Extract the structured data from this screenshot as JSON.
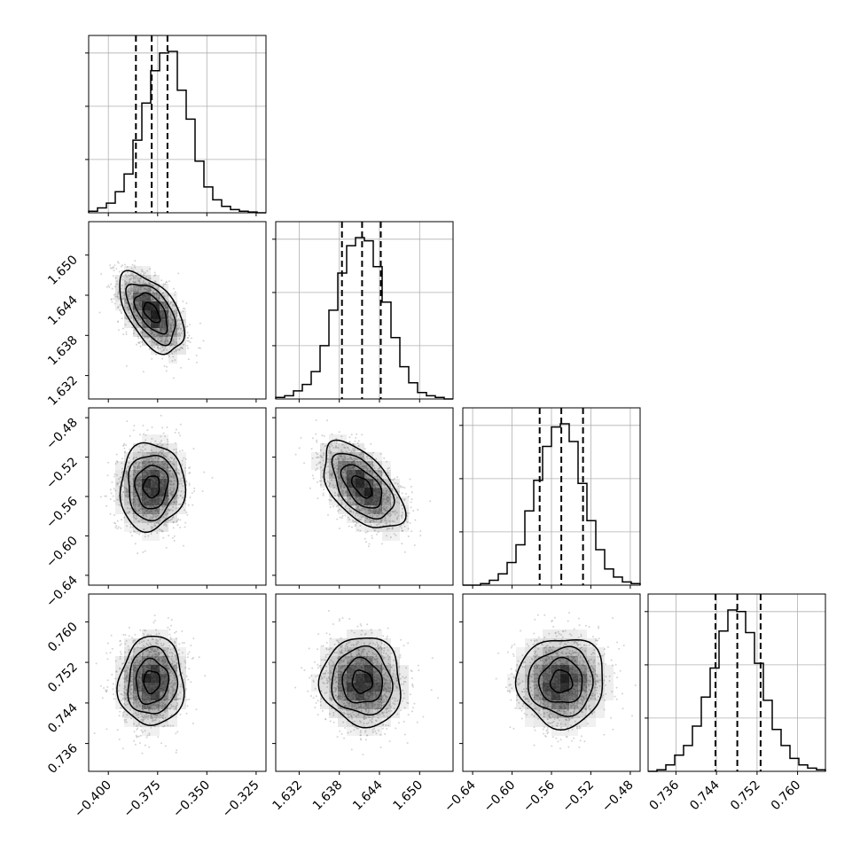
{
  "chart_data": {
    "type": "corner",
    "n_params": 4,
    "axes": [
      {
        "range": [
          -0.41,
          -0.32
        ],
        "ticks": [
          "−0.400",
          "−0.375",
          "−0.350",
          "−0.325"
        ],
        "tick_values": [
          -0.4,
          -0.375,
          -0.35,
          -0.325
        ]
      },
      {
        "range": [
          1.6285,
          1.655
        ],
        "ticks": [
          "1.632",
          "1.638",
          "1.644",
          "1.650"
        ],
        "tick_values": [
          1.632,
          1.638,
          1.644,
          1.65
        ]
      },
      {
        "range": [
          -0.65,
          -0.47
        ],
        "ticks": [
          "−0.64",
          "−0.60",
          "−0.56",
          "−0.52",
          "−0.48"
        ],
        "tick_values": [
          -0.64,
          -0.6,
          -0.56,
          -0.52,
          -0.48
        ]
      },
      {
        "range": [
          0.7305,
          0.7655
        ],
        "ticks": [
          "0.736",
          "0.744",
          "0.752",
          "0.760"
        ],
        "tick_values": [
          0.736,
          0.744,
          0.752,
          0.76
        ]
      }
    ],
    "histograms": [
      {
        "quantiles": [
          -0.386,
          -0.378,
          -0.37
        ],
        "counts": [
          0.01,
          0.03,
          0.06,
          0.13,
          0.24,
          0.45,
          0.68,
          0.88,
          0.99,
          1.0,
          0.76,
          0.58,
          0.32,
          0.16,
          0.08,
          0.04,
          0.02,
          0.01,
          0.005,
          0.0
        ]
      },
      {
        "quantiles": [
          1.6384,
          1.6414,
          1.6442
        ],
        "counts": [
          0.01,
          0.02,
          0.05,
          0.09,
          0.17,
          0.33,
          0.55,
          0.78,
          0.95,
          1.0,
          0.98,
          0.82,
          0.6,
          0.38,
          0.2,
          0.1,
          0.04,
          0.02,
          0.01,
          0.0
        ]
      },
      {
        "quantiles": [
          -0.572,
          -0.55,
          -0.528
        ],
        "counts": [
          0.0,
          0.0,
          0.01,
          0.03,
          0.07,
          0.14,
          0.25,
          0.46,
          0.65,
          0.86,
          0.98,
          1.0,
          0.89,
          0.63,
          0.4,
          0.22,
          0.1,
          0.05,
          0.02,
          0.01
        ]
      },
      {
        "quantiles": [
          0.7438,
          0.7481,
          0.7527
        ],
        "counts": [
          0.0,
          0.01,
          0.04,
          0.1,
          0.16,
          0.28,
          0.46,
          0.64,
          0.87,
          1.0,
          0.99,
          0.86,
          0.67,
          0.44,
          0.26,
          0.16,
          0.08,
          0.04,
          0.02,
          0.01
        ]
      }
    ],
    "pairs": [
      {
        "x": 0,
        "y": 1,
        "mean": [
          -0.378,
          1.6414
        ],
        "sd": [
          0.0082,
          0.003
        ],
        "corr": -0.55
      },
      {
        "x": 0,
        "y": 2,
        "mean": [
          -0.378,
          -0.55
        ],
        "sd": [
          0.0082,
          0.022
        ],
        "corr": 0.05
      },
      {
        "x": 1,
        "y": 2,
        "mean": [
          1.6414,
          -0.55
        ],
        "sd": [
          0.003,
          0.022
        ],
        "corr": -0.55
      },
      {
        "x": 0,
        "y": 3,
        "mean": [
          -0.378,
          0.7482
        ],
        "sd": [
          0.0082,
          0.0044
        ],
        "corr": 0.03
      },
      {
        "x": 1,
        "y": 3,
        "mean": [
          1.6414,
          0.7482
        ],
        "sd": [
          0.003,
          0.0044
        ],
        "corr": -0.05
      },
      {
        "x": 2,
        "y": 3,
        "mean": [
          -0.55,
          0.7482
        ],
        "sd": [
          0.022,
          0.0044
        ],
        "corr": 0.02
      }
    ],
    "contour_levels": [
      0.5,
      1.0,
      1.5,
      2.0
    ],
    "grid": true,
    "colors": {
      "line": "#000000",
      "scatter": "#b0b0b0",
      "density": "#000000",
      "grid": "#b0b0b0"
    }
  }
}
